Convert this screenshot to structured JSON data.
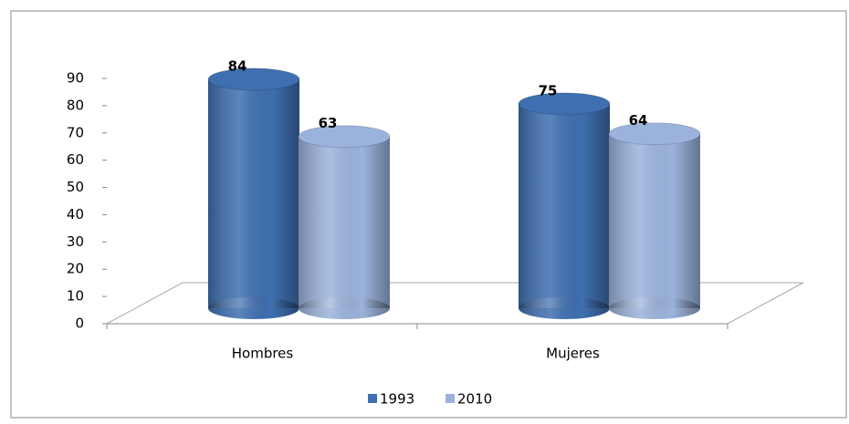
{
  "chart_data": {
    "type": "bar",
    "categories": [
      "Hombres",
      "Mujeres"
    ],
    "series": [
      {
        "name": "1993",
        "color": "#3f6fb0",
        "values": [
          84,
          75
        ]
      },
      {
        "name": "2010",
        "color": "#9bb3dc",
        "values": [
          63,
          64
        ]
      }
    ],
    "ylim": [
      0,
      90
    ],
    "yticks": [
      0,
      10,
      20,
      30,
      40,
      50,
      60,
      70,
      80,
      90
    ],
    "legend": "bottom"
  }
}
